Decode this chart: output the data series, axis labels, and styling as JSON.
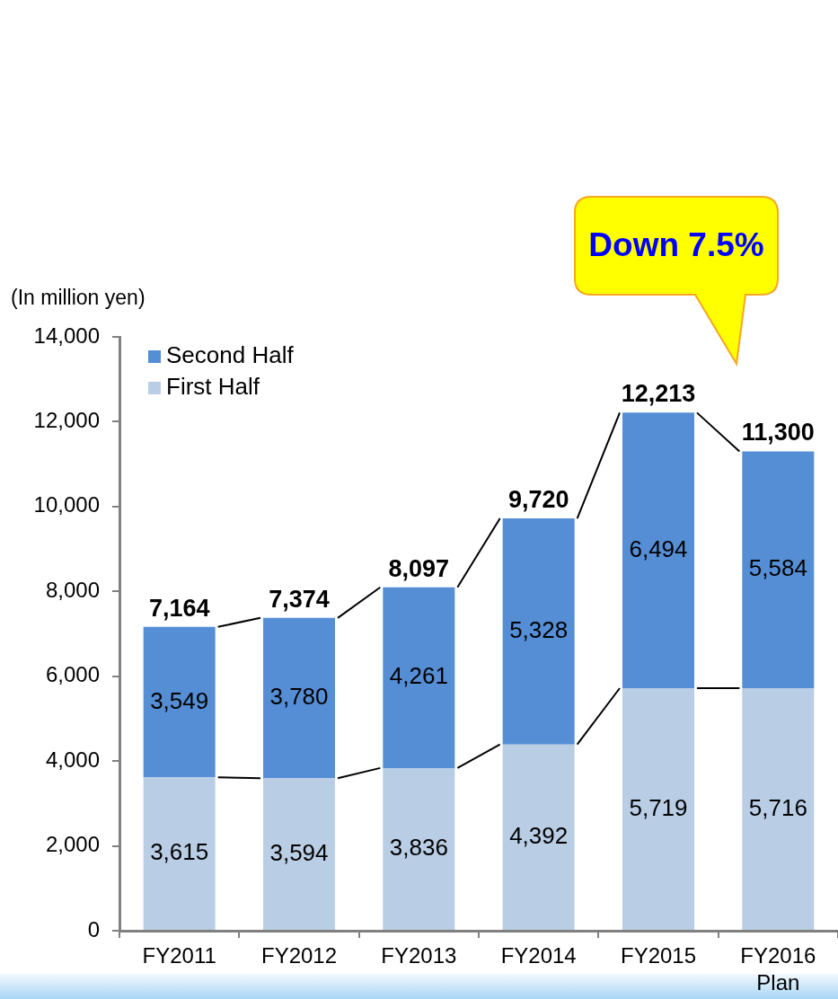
{
  "chart_data": {
    "type": "bar",
    "ylabel": "(In million yen)",
    "categories": [
      "FY2011",
      "FY2012",
      "FY2013",
      "FY2014",
      "FY2015",
      "FY2016\nPlan"
    ],
    "series": [
      {
        "name": "First Half",
        "color": "#b9cde5",
        "values": [
          3615,
          3594,
          3836,
          4392,
          5719,
          5716
        ],
        "value_labels": [
          "3,615",
          "3,594",
          "3,836",
          "4,392",
          "5,719",
          "5,716"
        ]
      },
      {
        "name": "Second Half",
        "color": "#558ed5",
        "values": [
          3549,
          3780,
          4261,
          5328,
          6494,
          5584
        ],
        "value_labels": [
          "3,549",
          "3,780",
          "4,261",
          "5,328",
          "6,494",
          "5,584"
        ]
      }
    ],
    "stacked": true,
    "totals": [
      "7,164",
      "7,374",
      "8,097",
      "9,720",
      "12,213",
      "11,300"
    ],
    "ylim": [
      0,
      14000
    ],
    "yticks": [
      {
        "value": 0,
        "label": "0"
      },
      {
        "value": 2000,
        "label": "2,000"
      },
      {
        "value": 4000,
        "label": "4,000"
      },
      {
        "value": 6000,
        "label": "6,000"
      },
      {
        "value": 8000,
        "label": "8,000"
      },
      {
        "value": 10000,
        "label": "10,000"
      },
      {
        "value": 12000,
        "label": "12,000"
      },
      {
        "value": 14000,
        "label": "14,000"
      }
    ],
    "grid": false,
    "legend": "top left",
    "annotations": [
      "Down 7.5%"
    ]
  }
}
